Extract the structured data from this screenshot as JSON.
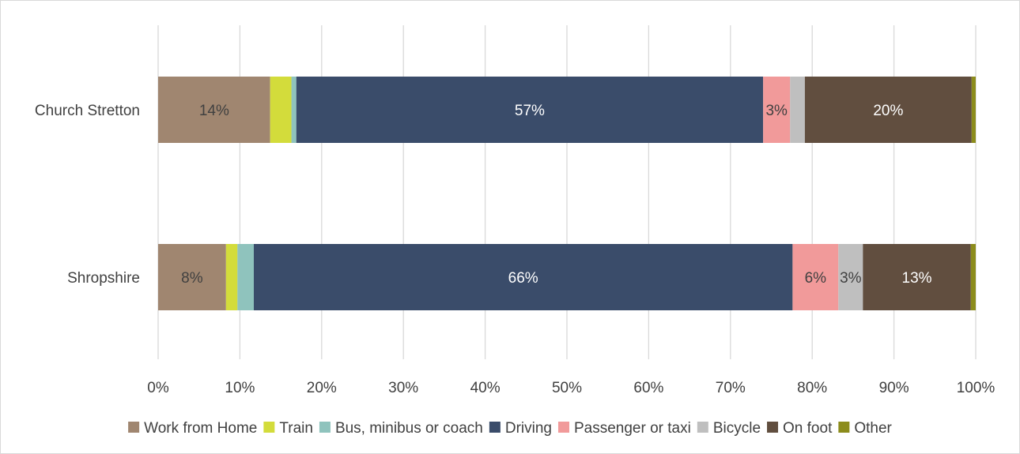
{
  "chart_data": {
    "type": "bar",
    "orientation": "horizontal",
    "stacked": "percent",
    "title": "",
    "xlabel": "",
    "ylabel": "",
    "xlim": [
      0,
      100
    ],
    "x_ticks": [
      "0%",
      "10%",
      "20%",
      "30%",
      "40%",
      "50%",
      "60%",
      "70%",
      "80%",
      "90%",
      "100%"
    ],
    "grid": "vertical",
    "legend_position": "bottom",
    "categories": [
      "Church Stretton",
      "Shropshire"
    ],
    "series": [
      {
        "name": "Work from Home",
        "color": "#a08670",
        "label_color": "#404040",
        "values": [
          13.7,
          8.3
        ],
        "labels": [
          "14%",
          "8%"
        ]
      },
      {
        "name": "Train",
        "color": "#d3dc3b",
        "label_color": "#404040",
        "values": [
          2.6,
          1.4
        ],
        "labels": [
          "",
          ""
        ]
      },
      {
        "name": "Bus, minibus or coach",
        "color": "#8fc3bd",
        "label_color": "#404040",
        "values": [
          0.6,
          2.0
        ],
        "labels": [
          "",
          ""
        ]
      },
      {
        "name": "Driving",
        "color": "#3a4c6a",
        "label_color": "#ffffff",
        "values": [
          57.1,
          65.9
        ],
        "labels": [
          "57%",
          "66%"
        ]
      },
      {
        "name": "Passenger or taxi",
        "color": "#f19a9a",
        "label_color": "#404040",
        "values": [
          3.3,
          5.6
        ],
        "labels": [
          "3%",
          "6%"
        ]
      },
      {
        "name": "Bicycle",
        "color": "#bfbfbf",
        "label_color": "#404040",
        "values": [
          1.8,
          3.0
        ],
        "labels": [
          "",
          "3%"
        ]
      },
      {
        "name": "On foot",
        "color": "#614e3f",
        "label_color": "#ffffff",
        "values": [
          20.4,
          13.2
        ],
        "labels": [
          "20%",
          "13%"
        ]
      },
      {
        "name": "Other",
        "color": "#8c8c1c",
        "label_color": "#404040",
        "values": [
          0.5,
          0.6
        ],
        "labels": [
          "",
          ""
        ]
      }
    ]
  }
}
